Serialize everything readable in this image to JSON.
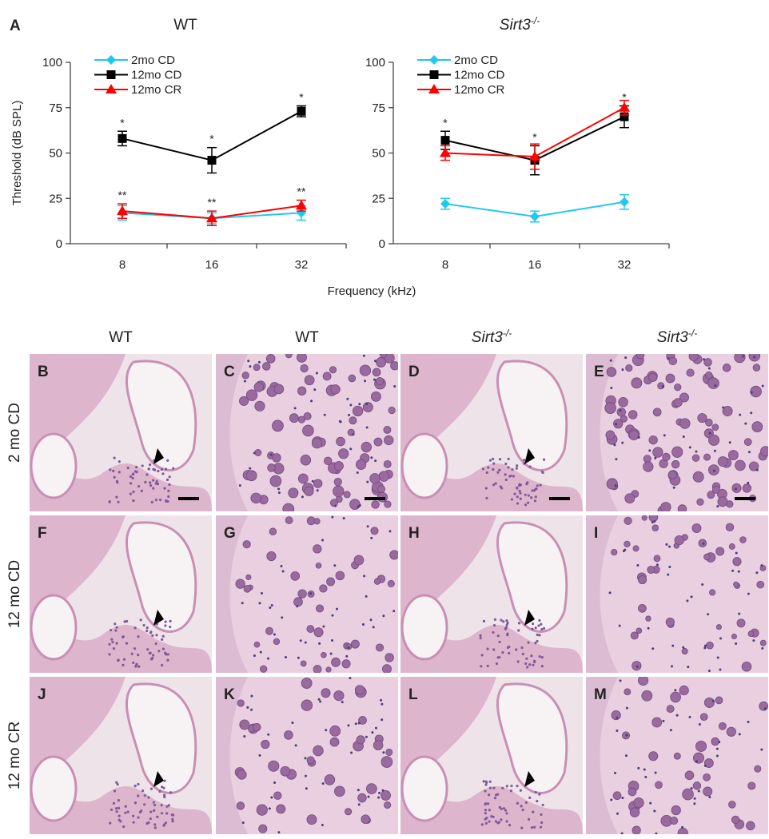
{
  "panel_label": "A",
  "x_label": "Frequency (kHz)",
  "chart_data": [
    {
      "type": "line",
      "title": "WT",
      "y_label": "Threshold (dB SPL)",
      "categories": [
        "8",
        "16",
        "32"
      ],
      "ylim": [
        0,
        100
      ],
      "yticks": [
        0,
        25,
        50,
        75,
        100
      ],
      "legend": "top-left",
      "series": [
        {
          "name": "2mo CD",
          "color": "#1ec8f0",
          "marker": "diamond",
          "values": [
            17,
            14,
            17
          ],
          "errors": [
            4,
            3,
            4
          ],
          "annotations": [
            null,
            null,
            null
          ]
        },
        {
          "name": "12mo CD",
          "color": "#000000",
          "marker": "square",
          "values": [
            58,
            46,
            73
          ],
          "errors": [
            4,
            7,
            3
          ],
          "annotations": [
            "*",
            "*",
            "*"
          ]
        },
        {
          "name": "12mo CR",
          "color": "#ff0000",
          "marker": "triangle",
          "values": [
            18,
            14,
            21
          ],
          "errors": [
            4,
            4,
            3
          ],
          "annotations": [
            "**",
            "**",
            "**"
          ]
        }
      ]
    },
    {
      "type": "line",
      "title": "Sirt3",
      "title_sup": "-/-",
      "categories": [
        "8",
        "16",
        "32"
      ],
      "ylim": [
        0,
        100
      ],
      "yticks": [
        0,
        25,
        50,
        75,
        100
      ],
      "legend": "top-left",
      "series": [
        {
          "name": "2mo CD",
          "color": "#1ec8f0",
          "marker": "diamond",
          "values": [
            22,
            15,
            23
          ],
          "errors": [
            3,
            3,
            4
          ],
          "annotations": [
            null,
            null,
            null
          ]
        },
        {
          "name": "12mo CD",
          "color": "#000000",
          "marker": "square",
          "values": [
            57,
            46,
            70
          ],
          "errors": [
            5,
            8,
            6
          ],
          "annotations": [
            "*",
            "*",
            "*"
          ]
        },
        {
          "name": "12mo CR",
          "color": "#ff0000",
          "marker": "triangle",
          "values": [
            50,
            48,
            75
          ],
          "errors": [
            4,
            7,
            4
          ],
          "annotations": [
            null,
            null,
            null
          ]
        }
      ]
    }
  ],
  "image_grid": {
    "columns": [
      {
        "text": "WT"
      },
      {
        "text": "WT"
      },
      {
        "text": "Sirt3",
        "sup": "-/-"
      },
      {
        "text": "Sirt3",
        "sup": "-/-"
      }
    ],
    "rows": [
      "2 mo CD",
      "12 mo CD",
      "12 mo CR"
    ],
    "panels": [
      [
        "B",
        "C",
        "D",
        "E"
      ],
      [
        "F",
        "G",
        "H",
        "I"
      ],
      [
        "J",
        "K",
        "L",
        "M"
      ]
    ]
  }
}
